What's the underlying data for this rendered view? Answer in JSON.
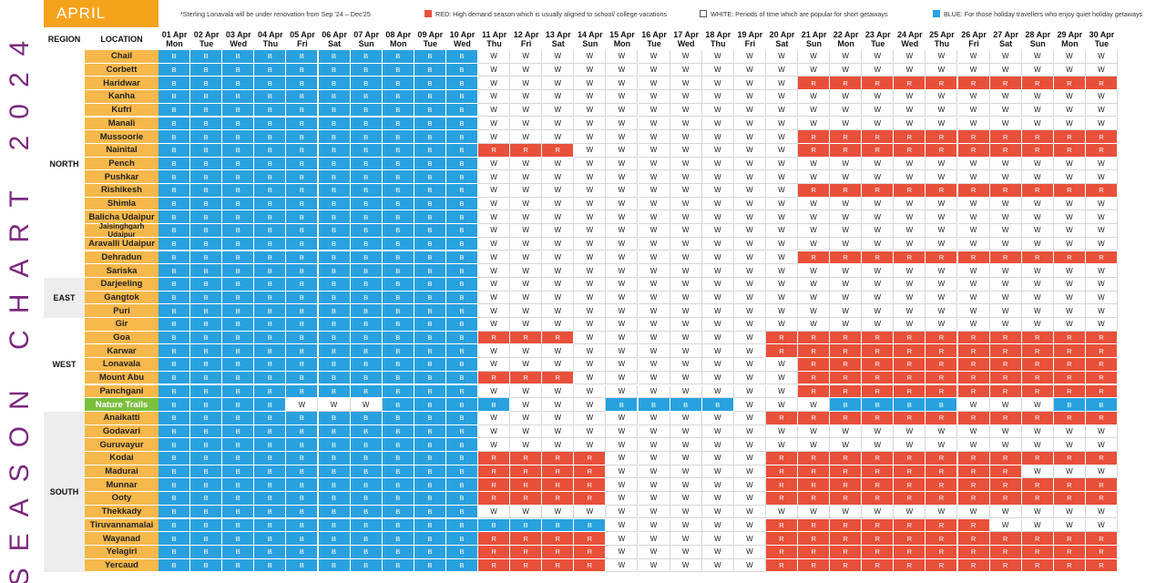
{
  "title_vertical": "SEASON CHART 2024",
  "month": "APRIL",
  "legend": {
    "note": "*Sterling Lonavala will be under renovation from Sep '24 – Dec'25",
    "red": "RED: High demand season which is usually aligned to school/ college vacations",
    "white": "WHITE: Periods of time which are popular for short getaways",
    "blue": "BLUE: For those holiday travellers who enjoy quiet holiday getaways"
  },
  "colors": {
    "red": "#e8503a",
    "blue": "#29a1df",
    "white": "#ffffff",
    "orange": "#f6a31c",
    "location": "#f6b84b",
    "green": "#7cbf3c",
    "title": "#7b2a7e"
  },
  "headers": {
    "region": "REGION",
    "location": "LOCATION"
  },
  "dates": [
    "01 Apr",
    "02 Apr",
    "03 Apr",
    "04 Apr",
    "05 Apr",
    "06 Apr",
    "07 Apr",
    "08 Apr",
    "09 Apr",
    "10 Apr",
    "11 Apr",
    "12 Apr",
    "13 Apr",
    "14 Apr",
    "15 Apr",
    "16 Apr",
    "17 Apr",
    "18 Apr",
    "19 Apr",
    "20 Apr",
    "21 Apr",
    "22 Apr",
    "23 Apr",
    "24 Apr",
    "25 Apr",
    "26 Apr",
    "27 Apr",
    "28 Apr",
    "29 Apr",
    "30 Apr"
  ],
  "days": [
    "Mon",
    "Tue",
    "Wed",
    "Thu",
    "Fri",
    "Sat",
    "Sun",
    "Mon",
    "Tue",
    "Wed",
    "Thu",
    "Fri",
    "Sat",
    "Sun",
    "Mon",
    "Tue",
    "Wed",
    "Thu",
    "Fri",
    "Sat",
    "Sun",
    "Mon",
    "Tue",
    "Wed",
    "Thu",
    "Fri",
    "Sat",
    "Sun",
    "Mon",
    "Tue"
  ],
  "regions": [
    {
      "name": "NORTH",
      "rows": [
        {
          "location": "Chail",
          "status": "BBBBBBBBBBWWWWWWWWWWWWWWWWWWWW"
        },
        {
          "location": "Corbett",
          "status": "BBBBBBBBBBWWWWWWWWWWWWWWWWWWWW"
        },
        {
          "location": "Haridwar",
          "status": "BBBBBBBBBBWWWWWWWWWWRRRRRRRRRR"
        },
        {
          "location": "Kanha",
          "status": "BBBBBBBBBBWWWWWWWWWWWWWWWWWWWW"
        },
        {
          "location": "Kufri",
          "status": "BBBBBBBBBBWWWWWWWWWWWWWWWWWWWW"
        },
        {
          "location": "Manali",
          "status": "BBBBBBBBBBWWWWWWWWWWWWWWWWWWWW"
        },
        {
          "location": "Mussoorie",
          "status": "BBBBBBBBBBWWWWWWWWWWRRRRRRRRRR"
        },
        {
          "location": "Nainital",
          "status": "BBBBBBBBBBRRRWWWWWWWRRRRRRRRRR"
        },
        {
          "location": "Pench",
          "status": "BBBBBBBBBBWWWWWWWWWWWWWWWWWWWW"
        },
        {
          "location": "Pushkar",
          "status": "BBBBBBBBBBWWWWWWWWWWWWWWWWWWWW"
        },
        {
          "location": "Rishikesh",
          "status": "BBBBBBBBBBWWWWWWWWWWRRRRRRRRRR"
        },
        {
          "location": "Shimla",
          "status": "BBBBBBBBBBWWWWWWWWWWWWWWWWWWWW"
        },
        {
          "location": "Balicha Udaipur",
          "status": "BBBBBBBBBBWWWWWWWWWWWWWWWWWWWW"
        },
        {
          "location": "Jaisinghgarh Udaipur",
          "status": "BBBBBBBBBBWWWWWWWWWWWWWWWWWWWW"
        },
        {
          "location": "Aravalli Udaipur",
          "status": "BBBBBBBBBBWWWWWWWWWWWWWWWWWWWW"
        },
        {
          "location": "Dehradun",
          "status": "BBBBBBBBBBWWWWWWWWWWRRRRRRRRRR"
        },
        {
          "location": "Sariska",
          "status": "BBBBBBBBBBWWWWWWWWWWWWWWWWWWWW"
        }
      ]
    },
    {
      "name": "EAST",
      "rows": [
        {
          "location": "Darjeeling",
          "status": "BBBBBBBBBBWWWWWWWWWWWWWWWWWWWW"
        },
        {
          "location": "Gangtok",
          "status": "BBBBBBBBBBWWWWWWWWWWWWWWWWWWWW"
        },
        {
          "location": "Puri",
          "status": "BBBBBBBBBBWWWWWWWWWWWWWWWWWWWW"
        }
      ]
    },
    {
      "name": "WEST",
      "rows": [
        {
          "location": "Gir",
          "status": "BBBBBBBBBBWWWWWWWWWWWWWWWWWWWW"
        },
        {
          "location": "Goa",
          "status": "BBBBBBBBBBRRRWWWWWWRRRRRRRRRRR"
        },
        {
          "location": "Karwar",
          "status": "BBBBBBBBBBWWWWWWWWWRRRRRRRRRRR"
        },
        {
          "location": "Lonavala",
          "status": "BBBBBBBBBBWWWWWWWWWWRRRRRRRRRR"
        },
        {
          "location": "Mount Abu",
          "status": "BBBBBBBBBBRRRWWWWWWWRRRRRRRRRR"
        },
        {
          "location": "Panchgani",
          "status": "BBBBBBBBBBWWWWWWWWWWRRRRRRRRRR"
        },
        {
          "location": "Nature Trails",
          "status": "BBBBWWWBBBBWWWBBBBWWWBBBBWWWBB",
          "highlight": true
        }
      ]
    },
    {
      "name": "SOUTH",
      "rows": [
        {
          "location": "Anaikatti",
          "status": "BBBBBBBBBBWWWWWWWWWRRRRRRRRRRR"
        },
        {
          "location": "Godavari",
          "status": "BBBBBBBBBBWWWWWWWWWWWWWWWWWWWW"
        },
        {
          "location": "Guruvayur",
          "status": "BBBBBBBBBBWWWWWWWWWWWWWWWWWWWW"
        },
        {
          "location": "Kodai",
          "status": "BBBBBBBBBBRRRRWWWWWRRRRRRRRRRR"
        },
        {
          "location": "Madurai",
          "status": "BBBBBBBBBBRRRRWWWWWRRRRRRRRWWW"
        },
        {
          "location": "Munnar",
          "status": "BBBBBBBBBBRRRRWWWWWRRRRRRRRRRR"
        },
        {
          "location": "Ooty",
          "status": "BBBBBBBBBBRRRRWWWWWRRRRRRRRRRR"
        },
        {
          "location": "Thekkady",
          "status": "BBBBBBBBBBWWWWWWWWWWWWWWWWWWWW"
        },
        {
          "location": "Tiruvannamalai",
          "status": "BBBBBBBBBBBBBBWWWWWRRRRRRRWWWW"
        },
        {
          "location": "Wayanad",
          "status": "BBBBBBBBBBRRRRWWWWWRRRRRRRRRRR"
        },
        {
          "location": "Yelagiri",
          "status": "BBBBBBBBBBRRRRWWWWWRRRRRRRRRRR"
        },
        {
          "location": "Yercaud",
          "status": "BBBBBBBBBBRRRRWWWWWRRRRRRRRRRR"
        }
      ]
    }
  ]
}
